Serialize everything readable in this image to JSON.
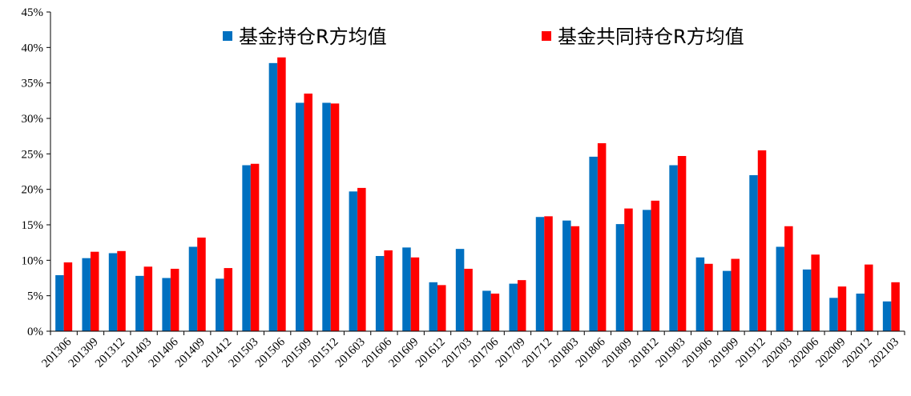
{
  "chart_data": {
    "type": "bar",
    "categories": [
      "201306",
      "201309",
      "201312",
      "201403",
      "201406",
      "201409",
      "201412",
      "201503",
      "201506",
      "201509",
      "201512",
      "201603",
      "201606",
      "201609",
      "201612",
      "201703",
      "201706",
      "201709",
      "201712",
      "201803",
      "201806",
      "201809",
      "201812",
      "201903",
      "201906",
      "201909",
      "201912",
      "202003",
      "202006",
      "202009",
      "202012",
      "202103"
    ],
    "series": [
      {
        "name": "基金持仓R方均值",
        "color": "#0070C0",
        "values": [
          7.9,
          10.3,
          11.0,
          7.8,
          7.5,
          11.9,
          7.4,
          23.4,
          37.8,
          32.2,
          32.2,
          19.7,
          10.6,
          11.8,
          6.9,
          11.6,
          5.7,
          6.7,
          16.1,
          15.6,
          24.6,
          15.1,
          17.1,
          23.4,
          10.4,
          8.5,
          22.0,
          11.9,
          8.7,
          4.7,
          5.3,
          4.2
        ]
      },
      {
        "name": "基金共同持仓R方均值",
        "color": "#FF0000",
        "values": [
          9.7,
          11.2,
          11.3,
          9.1,
          8.8,
          13.2,
          8.9,
          23.6,
          38.6,
          33.5,
          32.1,
          20.2,
          11.4,
          10.4,
          6.5,
          8.8,
          5.3,
          7.2,
          16.2,
          14.8,
          26.5,
          17.3,
          18.4,
          24.7,
          9.5,
          10.2,
          25.5,
          14.8,
          10.8,
          6.3,
          9.4,
          6.9
        ]
      }
    ],
    "ylim": [
      0,
      45
    ],
    "yticks": [
      0,
      5,
      10,
      15,
      20,
      25,
      30,
      35,
      40,
      45
    ],
    "ytick_labels": [
      "0%",
      "5%",
      "10%",
      "15%",
      "20%",
      "25%",
      "30%",
      "35%",
      "40%",
      "45%"
    ],
    "grid": false,
    "legend_position": "top"
  }
}
